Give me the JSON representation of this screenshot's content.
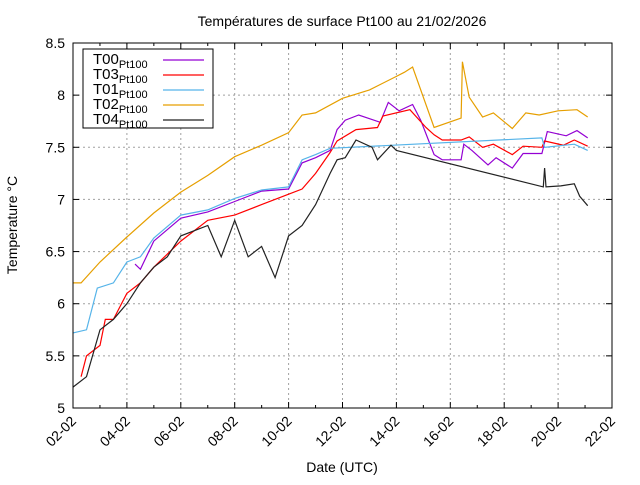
{
  "chart_data": {
    "type": "line",
    "title": "Températures de surface Pt100  au 21/02/2026",
    "xlabel": "Date (UTC)",
    "ylabel": "Temperature °C",
    "x_unit": "days since 02-02",
    "xlim": [
      0,
      20
    ],
    "ylim": [
      5,
      8.5
    ],
    "yticks": [
      "5",
      "5.5",
      "6",
      "6.5",
      "7",
      "7.5",
      "8",
      "8.5"
    ],
    "xticks": [
      "02-02",
      "04-02",
      "06-02",
      "08-02",
      "10-02",
      "12-02",
      "14-02",
      "16-02",
      "18-02",
      "20-02",
      "22-02"
    ],
    "grid": true,
    "legend_position": "top-left",
    "series": [
      {
        "name": "T00",
        "sub": "Pt100",
        "color": "#9400d3",
        "points": [
          [
            2.3,
            6.38
          ],
          [
            2.5,
            6.33
          ],
          [
            3,
            6.6
          ],
          [
            4,
            6.82
          ],
          [
            5,
            6.88
          ],
          [
            6,
            6.98
          ],
          [
            7,
            7.08
          ],
          [
            8,
            7.1
          ],
          [
            8.5,
            7.35
          ],
          [
            9,
            7.4
          ],
          [
            9.54,
            7.47
          ],
          [
            9.8,
            7.67
          ],
          [
            10.1,
            7.76
          ],
          [
            10.6,
            7.81
          ],
          [
            11.4,
            7.74
          ],
          [
            11.7,
            7.93
          ],
          [
            12.1,
            7.85
          ],
          [
            12.6,
            7.91
          ],
          [
            12.9,
            7.76
          ],
          [
            13.4,
            7.43
          ],
          [
            13.7,
            7.38
          ],
          [
            14.4,
            7.38
          ],
          [
            14.5,
            7.53
          ],
          [
            14.8,
            7.47
          ],
          [
            15.4,
            7.33
          ],
          [
            15.7,
            7.4
          ],
          [
            16.3,
            7.3
          ],
          [
            16.7,
            7.44
          ],
          [
            17.4,
            7.44
          ],
          [
            17.6,
            7.65
          ],
          [
            18.3,
            7.61
          ],
          [
            18.7,
            7.66
          ],
          [
            19.1,
            7.59
          ]
        ]
      },
      {
        "name": "T03",
        "sub": "Pt100",
        "color": "#ff0000",
        "points": [
          [
            0.3,
            5.3
          ],
          [
            0.5,
            5.5
          ],
          [
            1,
            5.6
          ],
          [
            1.2,
            5.85
          ],
          [
            1.5,
            5.85
          ],
          [
            2,
            6.1
          ],
          [
            2.5,
            6.2
          ],
          [
            3,
            6.35
          ],
          [
            4,
            6.6
          ],
          [
            5,
            6.8
          ],
          [
            6,
            6.85
          ],
          [
            7,
            6.95
          ],
          [
            8,
            7.05
          ],
          [
            8.5,
            7.1
          ],
          [
            9,
            7.25
          ],
          [
            9.54,
            7.45
          ],
          [
            9.8,
            7.56
          ],
          [
            10.5,
            7.67
          ],
          [
            11.3,
            7.69
          ],
          [
            11.5,
            7.8
          ],
          [
            12.5,
            7.86
          ],
          [
            13.1,
            7.69
          ],
          [
            13.4,
            7.62
          ],
          [
            13.7,
            7.57
          ],
          [
            14.4,
            7.57
          ],
          [
            14.7,
            7.6
          ],
          [
            15.2,
            7.5
          ],
          [
            15.6,
            7.53
          ],
          [
            16.3,
            7.43
          ],
          [
            16.7,
            7.51
          ],
          [
            17.4,
            7.5
          ],
          [
            17.5,
            7.56
          ],
          [
            18.2,
            7.52
          ],
          [
            18.6,
            7.57
          ],
          [
            19.1,
            7.51
          ]
        ]
      },
      {
        "name": "T01",
        "sub": "Pt100",
        "color": "#56b4e9",
        "points": [
          [
            0,
            5.72
          ],
          [
            0.5,
            5.75
          ],
          [
            0.9,
            6.15
          ],
          [
            1.5,
            6.2
          ],
          [
            2,
            6.4
          ],
          [
            2.5,
            6.45
          ],
          [
            3,
            6.63
          ],
          [
            4,
            6.85
          ],
          [
            5,
            6.9
          ],
          [
            6,
            7.01
          ],
          [
            7,
            7.09
          ],
          [
            8,
            7.12
          ],
          [
            8.5,
            7.38
          ],
          [
            9,
            7.43
          ],
          [
            9.54,
            7.49
          ],
          [
            17.4,
            7.59
          ],
          [
            17.5,
            7.5
          ],
          [
            18.6,
            7.53
          ],
          [
            19.1,
            7.47
          ]
        ]
      },
      {
        "name": "T02",
        "sub": "Pt100",
        "color": "#e69f00",
        "points": [
          [
            0,
            6.2
          ],
          [
            0.3,
            6.2
          ],
          [
            1,
            6.4
          ],
          [
            2,
            6.64
          ],
          [
            3,
            6.87
          ],
          [
            4,
            7.07
          ],
          [
            5,
            7.23
          ],
          [
            6,
            7.41
          ],
          [
            7,
            7.52
          ],
          [
            8,
            7.64
          ],
          [
            8.5,
            7.81
          ],
          [
            9,
            7.83
          ],
          [
            10,
            7.97
          ],
          [
            11,
            8.05
          ],
          [
            12,
            8.18
          ],
          [
            12.3,
            8.22
          ],
          [
            12.6,
            8.27
          ],
          [
            13.4,
            7.69
          ],
          [
            14.4,
            7.78
          ],
          [
            14.45,
            8.32
          ],
          [
            14.7,
            7.98
          ],
          [
            15.2,
            7.79
          ],
          [
            15.6,
            7.83
          ],
          [
            16.3,
            7.68
          ],
          [
            16.8,
            7.83
          ],
          [
            17.3,
            7.81
          ],
          [
            18,
            7.85
          ],
          [
            18.7,
            7.86
          ],
          [
            19.1,
            7.79
          ]
        ]
      },
      {
        "name": "T04",
        "sub": "Pt100",
        "color": "#222222",
        "points": [
          [
            0,
            5.2
          ],
          [
            0.5,
            5.3
          ],
          [
            1,
            5.75
          ],
          [
            1.5,
            5.85
          ],
          [
            2,
            6.0
          ],
          [
            2.5,
            6.2
          ],
          [
            3,
            6.35
          ],
          [
            3.5,
            6.45
          ],
          [
            4,
            6.65
          ],
          [
            4.5,
            6.7
          ],
          [
            5,
            6.75
          ],
          [
            5.5,
            6.45
          ],
          [
            6,
            6.8
          ],
          [
            6.5,
            6.45
          ],
          [
            7,
            6.55
          ],
          [
            7.5,
            6.25
          ],
          [
            8,
            6.65
          ],
          [
            8.5,
            6.75
          ],
          [
            9,
            6.95
          ],
          [
            9.54,
            7.25
          ],
          [
            9.8,
            7.38
          ],
          [
            10.1,
            7.4
          ],
          [
            10.5,
            7.57
          ],
          [
            11.1,
            7.5
          ],
          [
            11.3,
            7.38
          ],
          [
            11.8,
            7.52
          ],
          [
            12,
            7.47
          ],
          [
            17.45,
            7.12
          ],
          [
            17.5,
            7.3
          ],
          [
            17.55,
            7.12
          ],
          [
            18.1,
            7.13
          ],
          [
            18.6,
            7.15
          ],
          [
            18.8,
            7.03
          ],
          [
            19.1,
            6.94
          ]
        ]
      }
    ]
  }
}
